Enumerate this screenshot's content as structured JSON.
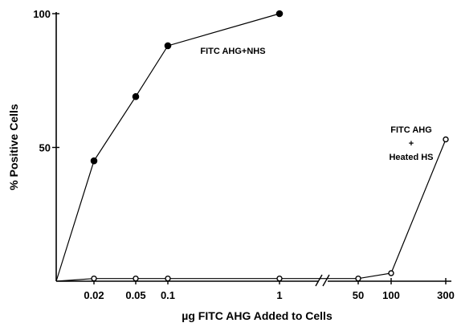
{
  "chart_data": {
    "type": "line",
    "title": "",
    "xlabel": "µg FITC AHG Added to Cells",
    "ylabel": "% Positive Cells",
    "ylim": [
      0,
      100
    ],
    "y_ticks": [
      "100",
      "50"
    ],
    "x_ticks": [
      "0.02",
      "0.05",
      "0.1",
      "1",
      "50",
      "100",
      "300"
    ],
    "x_axis_break": true,
    "grid": false,
    "series": [
      {
        "name": "FITC AHG+NHS",
        "marker": "filled-circle",
        "x": [
          "0",
          "0.02",
          "0.05",
          "0.1",
          "1"
        ],
        "values": [
          0,
          45,
          69,
          88,
          100
        ]
      },
      {
        "name": "FITC AHG + Heated HS",
        "marker": "open-circle",
        "x": [
          "0",
          "0.02",
          "0.05",
          "0.1",
          "1",
          "50",
          "100",
          "300"
        ],
        "values": [
          0,
          1,
          1,
          1,
          1,
          1,
          3,
          53
        ]
      }
    ],
    "annotations": [
      {
        "series": 0,
        "lines": [
          "FITC AHG+NHS"
        ]
      },
      {
        "series": 1,
        "lines": [
          "FITC AHG",
          "+",
          "Heated HS"
        ]
      }
    ],
    "colors": {
      "ink": "#000000",
      "background": "#ffffff"
    }
  }
}
